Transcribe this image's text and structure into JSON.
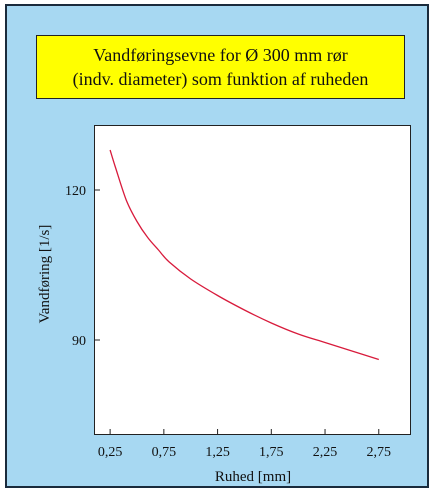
{
  "title": {
    "line1": "Vandføringsevne for Ø 300 mm rør",
    "line2": "(indv. diameter) som funktion af ruheden"
  },
  "colors": {
    "panel_bg": "#a7d8f2",
    "title_bg": "#ffff00",
    "line": "#d81b3c"
  },
  "chart_data": {
    "type": "line",
    "title": "Vandføringsevne for Ø 300 mm rør (indv. diameter) som funktion af ruheden",
    "xlabel": "Ruhed [mm]",
    "ylabel": "Vandføring [1/s]",
    "xlim": [
      0.1,
      3.05
    ],
    "ylim": [
      71,
      133
    ],
    "xticks": [
      0.25,
      0.75,
      1.25,
      1.75,
      2.25,
      2.75
    ],
    "xtick_labels": [
      "0,25",
      "0,75",
      "1,25",
      "1,75",
      "2,25",
      "2,75"
    ],
    "yticks": [
      90,
      120
    ],
    "ytick_labels": [
      "90",
      "120"
    ],
    "grid": false,
    "series": [
      {
        "x": [
          0.25,
          0.3,
          0.4,
          0.5,
          0.6,
          0.7,
          0.8,
          1.0,
          1.25,
          1.5,
          1.75,
          2.0,
          2.25,
          2.5,
          2.75
        ],
        "y": [
          128.0,
          124.5,
          118.0,
          113.7,
          110.5,
          108.0,
          105.6,
          102.2,
          98.9,
          96.0,
          93.4,
          91.2,
          89.5,
          87.8,
          86.1
        ]
      }
    ]
  }
}
